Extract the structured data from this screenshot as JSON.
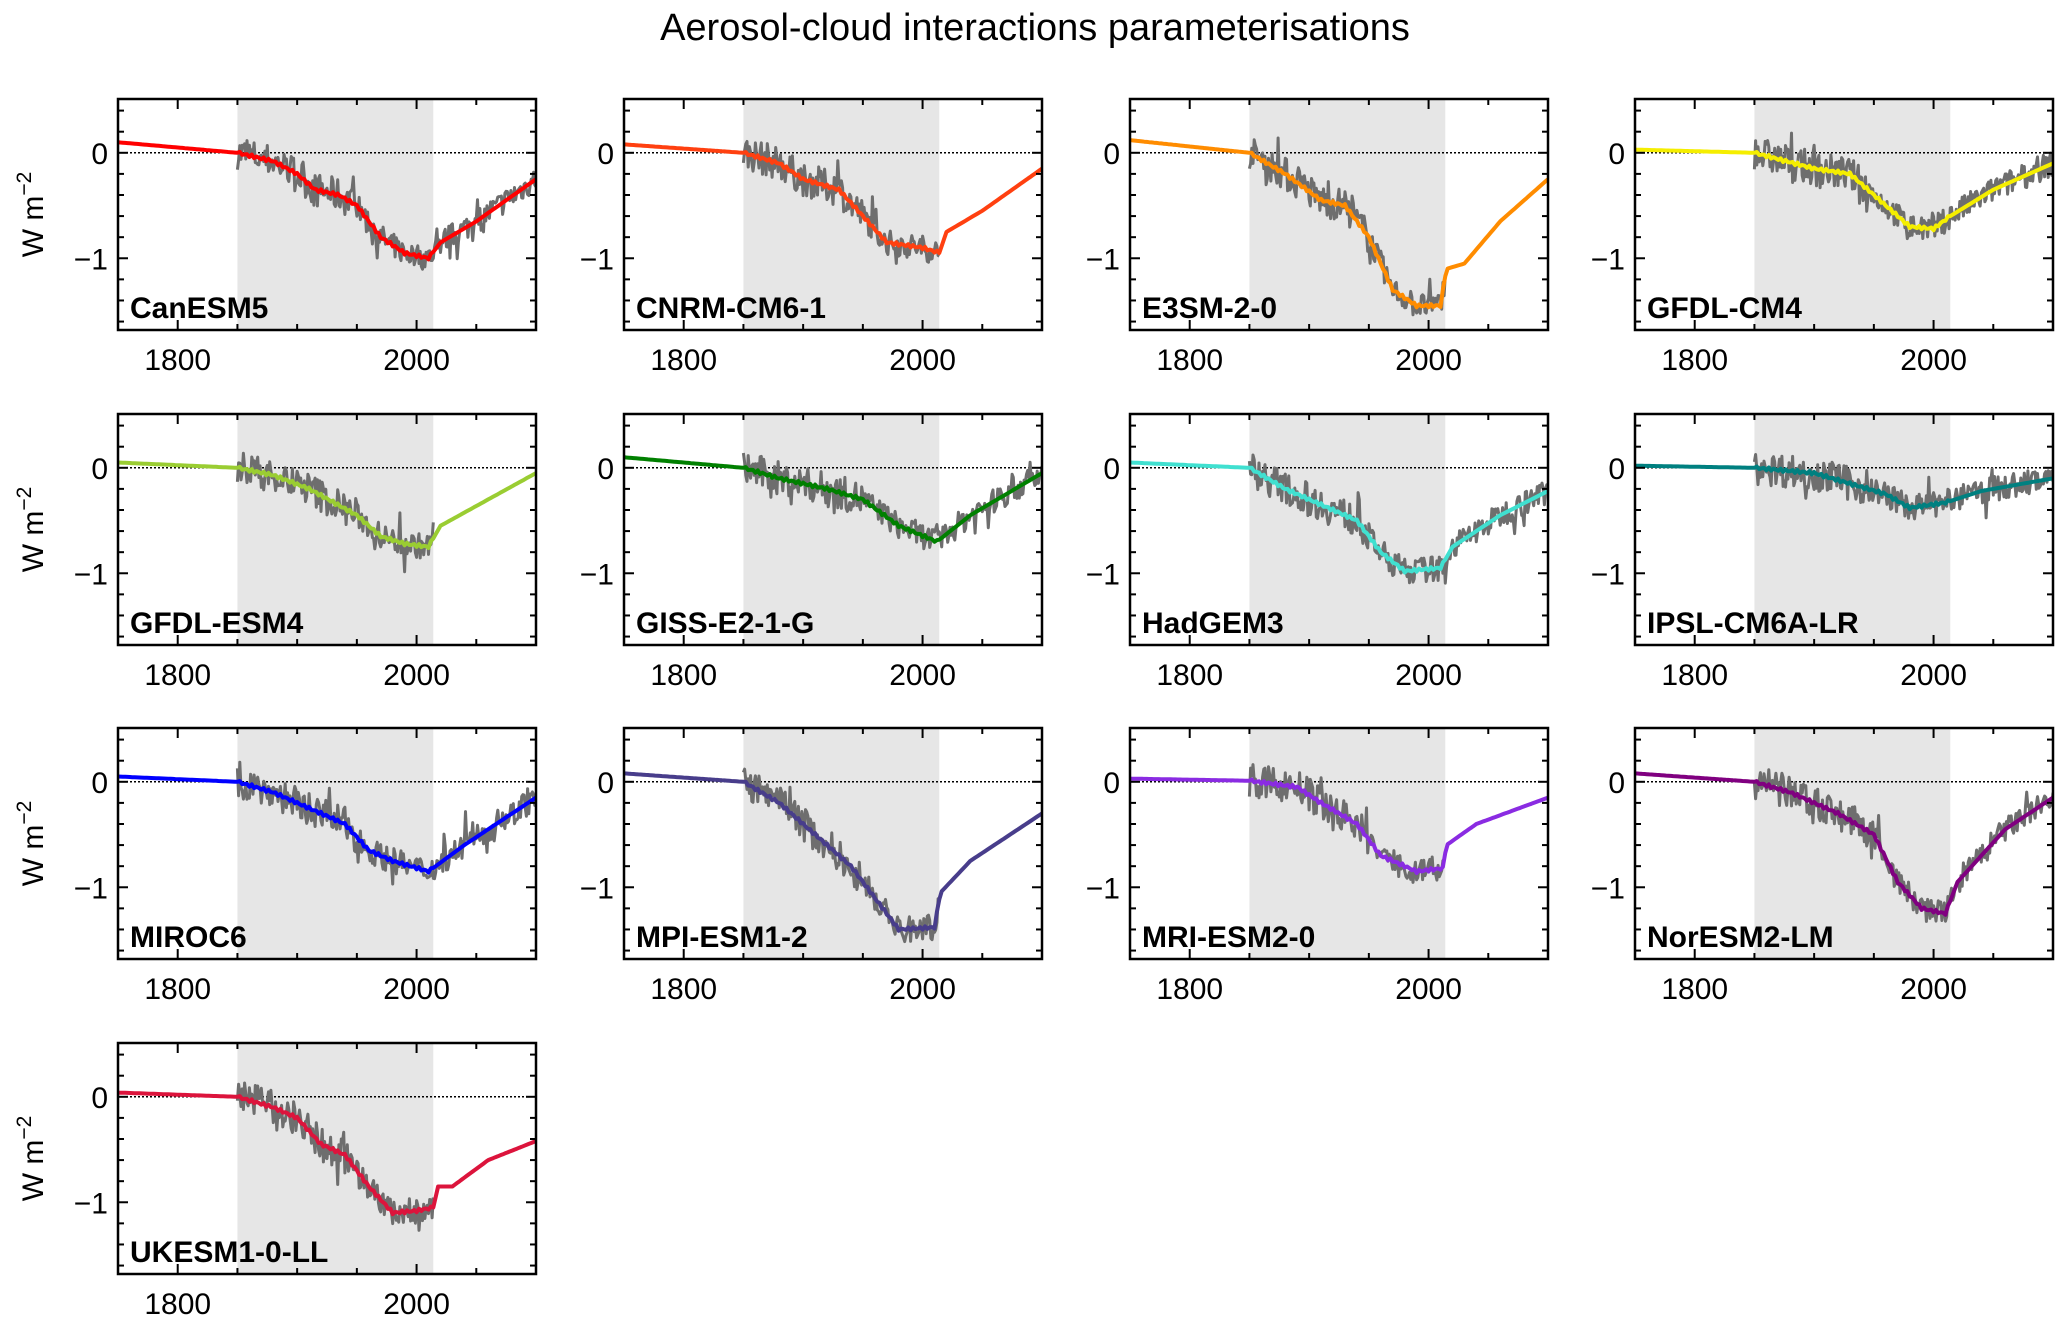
{
  "chart_data": {
    "type": "line",
    "title": "Aerosol-cloud interactions parameterisations",
    "ylabel": "W m",
    "ylabel_exponent": "−2",
    "xlim": [
      1750,
      2100
    ],
    "ylim": [
      -1.68,
      0.51
    ],
    "x_tick_labels": [
      "1800",
      "2000"
    ],
    "x_tick_values": [
      1800,
      2000
    ],
    "x_minor_ticks": [
      1750,
      1850,
      1900,
      1950,
      2050,
      2100
    ],
    "y_tick_labels": [
      "0",
      "−1"
    ],
    "y_tick_values": [
      0,
      -1
    ],
    "y_minor_step": 0.2,
    "shaded_period": [
      1850,
      2014
    ],
    "shade_color": "#e6e6e6",
    "annual_series_color": "#6e6e6e",
    "zero_line": "dotted",
    "panels": [
      {
        "name": "CanESM5",
        "color": "#ff0000",
        "grey_end": 2100,
        "smooth": [
          [
            1750,
            0.1
          ],
          [
            1850,
            0.0
          ],
          [
            1880,
            -0.08
          ],
          [
            1900,
            -0.2
          ],
          [
            1915,
            -0.35
          ],
          [
            1935,
            -0.4
          ],
          [
            1950,
            -0.5
          ],
          [
            1970,
            -0.8
          ],
          [
            1990,
            -0.95
          ],
          [
            2010,
            -1.0
          ],
          [
            2020,
            -0.85
          ],
          [
            2050,
            -0.65
          ],
          [
            2100,
            -0.25
          ]
        ]
      },
      {
        "name": "CNRM-CM6-1",
        "color": "#ff4010",
        "grey_end": 2014,
        "smooth": [
          [
            1750,
            0.08
          ],
          [
            1850,
            0.0
          ],
          [
            1880,
            -0.1
          ],
          [
            1900,
            -0.25
          ],
          [
            1930,
            -0.35
          ],
          [
            1950,
            -0.6
          ],
          [
            1970,
            -0.85
          ],
          [
            2000,
            -0.9
          ],
          [
            2014,
            -0.95
          ],
          [
            2020,
            -0.75
          ],
          [
            2050,
            -0.55
          ],
          [
            2100,
            -0.15
          ]
        ]
      },
      {
        "name": "E3SM-2-0",
        "color": "#ff8c00",
        "grey_end": 2014,
        "smooth": [
          [
            1750,
            0.12
          ],
          [
            1850,
            0.0
          ],
          [
            1880,
            -0.2
          ],
          [
            1910,
            -0.45
          ],
          [
            1930,
            -0.5
          ],
          [
            1950,
            -0.8
          ],
          [
            1970,
            -1.3
          ],
          [
            1990,
            -1.45
          ],
          [
            2010,
            -1.45
          ],
          [
            2015,
            -1.1
          ],
          [
            2030,
            -1.05
          ],
          [
            2060,
            -0.65
          ],
          [
            2100,
            -0.25
          ]
        ]
      },
      {
        "name": "GFDL-CM4",
        "color": "#f5ee00",
        "grey_end": 2100,
        "smooth": [
          [
            1750,
            0.03
          ],
          [
            1850,
            0.0
          ],
          [
            1900,
            -0.15
          ],
          [
            1930,
            -0.2
          ],
          [
            1960,
            -0.5
          ],
          [
            1980,
            -0.7
          ],
          [
            2000,
            -0.72
          ],
          [
            2014,
            -0.6
          ],
          [
            2050,
            -0.35
          ],
          [
            2100,
            -0.1
          ]
        ]
      },
      {
        "name": "GFDL-ESM4",
        "color": "#9acd32",
        "grey_end": 2014,
        "smooth": [
          [
            1750,
            0.05
          ],
          [
            1850,
            0.0
          ],
          [
            1880,
            -0.07
          ],
          [
            1910,
            -0.2
          ],
          [
            1950,
            -0.45
          ],
          [
            1970,
            -0.65
          ],
          [
            1990,
            -0.72
          ],
          [
            2010,
            -0.75
          ],
          [
            2020,
            -0.55
          ],
          [
            2060,
            -0.3
          ],
          [
            2100,
            -0.05
          ]
        ]
      },
      {
        "name": "GISS-E2-1-G",
        "color": "#008000",
        "grey_end": 2100,
        "smooth": [
          [
            1750,
            0.1
          ],
          [
            1850,
            0.0
          ],
          [
            1880,
            -0.1
          ],
          [
            1920,
            -0.2
          ],
          [
            1950,
            -0.3
          ],
          [
            1980,
            -0.55
          ],
          [
            2012,
            -0.7
          ],
          [
            2040,
            -0.45
          ],
          [
            2100,
            -0.05
          ]
        ]
      },
      {
        "name": "HadGEM3",
        "color": "#40e0d0",
        "grey_end": 2100,
        "smooth": [
          [
            1750,
            0.05
          ],
          [
            1850,
            0.0
          ],
          [
            1880,
            -0.2
          ],
          [
            1910,
            -0.35
          ],
          [
            1940,
            -0.5
          ],
          [
            1960,
            -0.8
          ],
          [
            1980,
            -0.98
          ],
          [
            2010,
            -0.95
          ],
          [
            2020,
            -0.75
          ],
          [
            2060,
            -0.45
          ],
          [
            2100,
            -0.22
          ]
        ]
      },
      {
        "name": "IPSL-CM6A-LR",
        "color": "#008080",
        "grey_end": 2100,
        "smooth": [
          [
            1750,
            0.02
          ],
          [
            1850,
            0.0
          ],
          [
            1900,
            -0.05
          ],
          [
            1930,
            -0.15
          ],
          [
            1960,
            -0.25
          ],
          [
            1980,
            -0.38
          ],
          [
            2010,
            -0.33
          ],
          [
            2040,
            -0.22
          ],
          [
            2100,
            -0.1
          ]
        ]
      },
      {
        "name": "MIROC6",
        "color": "#0000ff",
        "grey_end": 2100,
        "smooth": [
          [
            1750,
            0.05
          ],
          [
            1850,
            0.0
          ],
          [
            1880,
            -0.1
          ],
          [
            1910,
            -0.25
          ],
          [
            1940,
            -0.4
          ],
          [
            1960,
            -0.65
          ],
          [
            1980,
            -0.75
          ],
          [
            2010,
            -0.85
          ],
          [
            2040,
            -0.6
          ],
          [
            2100,
            -0.15
          ]
        ]
      },
      {
        "name": "MPI-ESM1-2",
        "color": "#483d8b",
        "grey_end": 2014,
        "smooth": [
          [
            1750,
            0.08
          ],
          [
            1850,
            0.0
          ],
          [
            1880,
            -0.2
          ],
          [
            1910,
            -0.5
          ],
          [
            1940,
            -0.8
          ],
          [
            1960,
            -1.1
          ],
          [
            1980,
            -1.4
          ],
          [
            2010,
            -1.38
          ],
          [
            2015,
            -1.05
          ],
          [
            2040,
            -0.75
          ],
          [
            2100,
            -0.3
          ]
        ]
      },
      {
        "name": "MRI-ESM2-0",
        "color": "#8a2be2",
        "grey_end": 2014,
        "smooth": [
          [
            1750,
            0.03
          ],
          [
            1850,
            0.01
          ],
          [
            1890,
            -0.05
          ],
          [
            1910,
            -0.2
          ],
          [
            1940,
            -0.4
          ],
          [
            1960,
            -0.7
          ],
          [
            1990,
            -0.85
          ],
          [
            2012,
            -0.82
          ],
          [
            2015,
            -0.6
          ],
          [
            2040,
            -0.4
          ],
          [
            2100,
            -0.15
          ]
        ]
      },
      {
        "name": "NorESM2-LM",
        "color": "#800080",
        "grey_end": 2100,
        "smooth": [
          [
            1750,
            0.08
          ],
          [
            1850,
            0.0
          ],
          [
            1880,
            -0.1
          ],
          [
            1920,
            -0.3
          ],
          [
            1950,
            -0.5
          ],
          [
            1970,
            -0.95
          ],
          [
            1990,
            -1.2
          ],
          [
            2010,
            -1.25
          ],
          [
            2020,
            -0.95
          ],
          [
            2060,
            -0.45
          ],
          [
            2100,
            -0.15
          ]
        ]
      },
      {
        "name": "UKESM1-0-LL",
        "color": "#dc143c",
        "grey_end": 2014,
        "smooth": [
          [
            1750,
            0.04
          ],
          [
            1850,
            0.0
          ],
          [
            1880,
            -0.1
          ],
          [
            1900,
            -0.2
          ],
          [
            1920,
            -0.45
          ],
          [
            1940,
            -0.55
          ],
          [
            1960,
            -0.85
          ],
          [
            1980,
            -1.1
          ],
          [
            2000,
            -1.08
          ],
          [
            2014,
            -1.05
          ],
          [
            2018,
            -0.85
          ],
          [
            2030,
            -0.85
          ],
          [
            2060,
            -0.6
          ],
          [
            2100,
            -0.42
          ]
        ]
      }
    ]
  }
}
